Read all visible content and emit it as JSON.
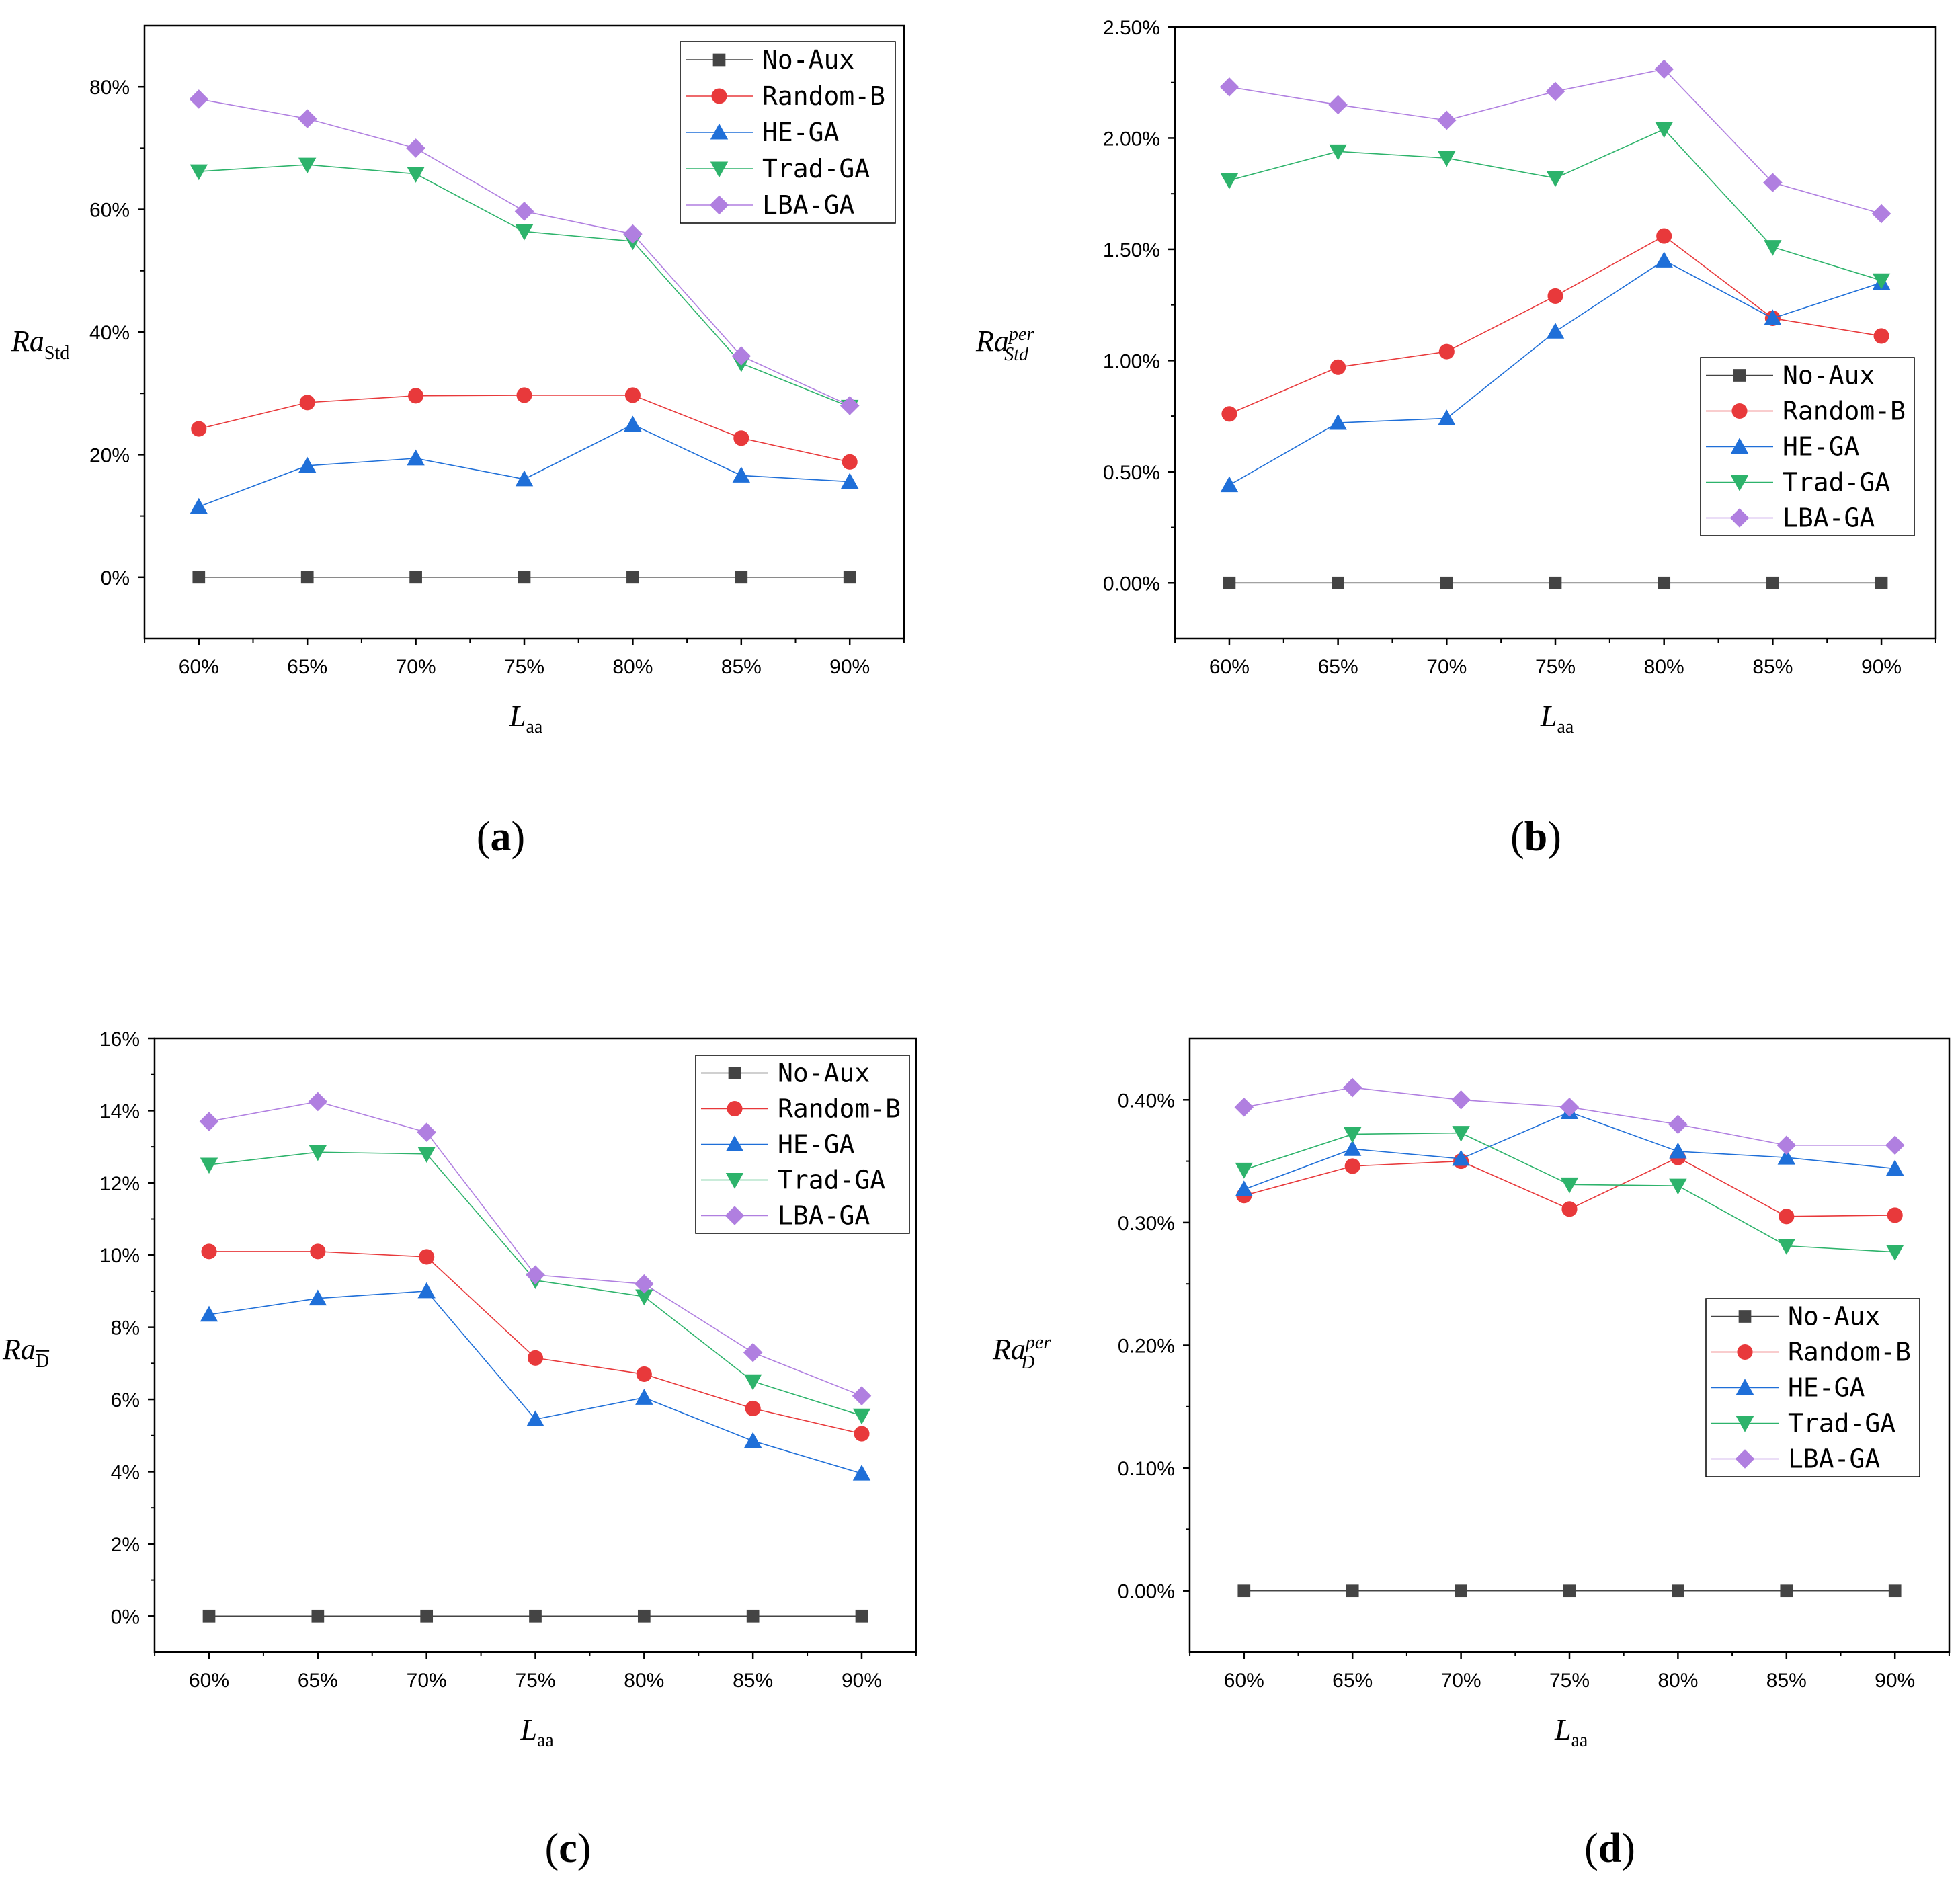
{
  "colors": {
    "No-Aux": "#444444",
    "Random-B": "#e8393b",
    "HE-GA": "#1f6fd8",
    "Trad-GA": "#2db36b",
    "LBA-GA": "#b07fe0"
  },
  "markers": {
    "No-Aux": "square",
    "Random-B": "circle",
    "HE-GA": "triangle-up",
    "Trad-GA": "triangle-down",
    "LBA-GA": "diamond"
  },
  "chart_data": [
    {
      "id": "a",
      "type": "line",
      "panel_label": "a",
      "ylabel_base": "Ra",
      "ylabel_sub": "Std",
      "ylabel_sup": "",
      "xlabel_base": "L",
      "xlabel_sub": "aa",
      "categories": [
        "60%",
        "65%",
        "70%",
        "75%",
        "80%",
        "85%",
        "90%"
      ],
      "ylim": [
        -10,
        90
      ],
      "yticks": [
        0,
        20,
        40,
        60,
        80
      ],
      "ytick_labels": [
        "0%",
        "20%",
        "40%",
        "60%",
        "80%"
      ],
      "legend_position": "top-right",
      "series": [
        {
          "name": "No-Aux",
          "values": [
            0,
            0,
            0,
            0,
            0,
            0,
            0
          ]
        },
        {
          "name": "Random-B",
          "values": [
            24.2,
            28.5,
            29.6,
            29.7,
            29.7,
            22.7,
            18.8
          ]
        },
        {
          "name": "HE-GA",
          "values": [
            11.5,
            18.2,
            19.4,
            16.0,
            24.9,
            16.6,
            15.6
          ]
        },
        {
          "name": "Trad-GA",
          "values": [
            66.2,
            67.3,
            65.8,
            56.4,
            54.8,
            34.9,
            27.8
          ]
        },
        {
          "name": "LBA-GA",
          "values": [
            78.0,
            74.8,
            70.0,
            59.7,
            56.0,
            36.1,
            28.0
          ]
        }
      ]
    },
    {
      "id": "b",
      "type": "line",
      "panel_label": "b",
      "ylabel_base": "Ra",
      "ylabel_sub": "Std",
      "ylabel_sup": "per",
      "xlabel_base": "L",
      "xlabel_sub": "aa",
      "categories": [
        "60%",
        "65%",
        "70%",
        "75%",
        "80%",
        "85%",
        "90%"
      ],
      "ylim": [
        -0.25,
        2.5
      ],
      "yticks": [
        0,
        0.5,
        1.0,
        1.5,
        2.0,
        2.5
      ],
      "ytick_labels": [
        "0.00%",
        "0.50%",
        "1.00%",
        "1.50%",
        "2.00%",
        "2.50%"
      ],
      "legend_position": "right",
      "series": [
        {
          "name": "No-Aux",
          "values": [
            0,
            0,
            0,
            0,
            0,
            0,
            0
          ]
        },
        {
          "name": "Random-B",
          "values": [
            0.76,
            0.97,
            1.04,
            1.29,
            1.56,
            1.19,
            1.11
          ]
        },
        {
          "name": "HE-GA",
          "values": [
            0.44,
            0.72,
            0.74,
            1.13,
            1.45,
            1.19,
            1.35
          ]
        },
        {
          "name": "Trad-GA",
          "values": [
            1.81,
            1.94,
            1.91,
            1.82,
            2.04,
            1.51,
            1.36
          ]
        },
        {
          "name": "LBA-GA",
          "values": [
            2.23,
            2.15,
            2.08,
            2.21,
            2.31,
            1.8,
            1.66
          ]
        }
      ]
    },
    {
      "id": "c",
      "type": "line",
      "panel_label": "c",
      "ylabel_base": "Ra",
      "ylabel_sub": "D",
      "ylabel_sup": "",
      "xlabel_base": "L",
      "xlabel_sub": "aa",
      "categories": [
        "60%",
        "65%",
        "70%",
        "75%",
        "80%",
        "85%",
        "90%"
      ],
      "ylim": [
        -1,
        16
      ],
      "yticks": [
        0,
        2,
        4,
        6,
        8,
        10,
        12,
        14,
        16
      ],
      "ytick_labels": [
        "0%",
        "2%",
        "4%",
        "6%",
        "8%",
        "10%",
        "12%",
        "14%",
        "16%"
      ],
      "legend_position": "top-right",
      "series": [
        {
          "name": "No-Aux",
          "values": [
            0,
            0,
            0,
            0,
            0,
            0,
            0
          ]
        },
        {
          "name": "Random-B",
          "values": [
            10.1,
            10.1,
            9.95,
            7.15,
            6.7,
            5.75,
            5.05
          ]
        },
        {
          "name": "HE-GA",
          "values": [
            8.35,
            8.8,
            9.0,
            5.45,
            6.05,
            4.85,
            3.95
          ]
        },
        {
          "name": "Trad-GA",
          "values": [
            12.5,
            12.85,
            12.8,
            9.3,
            8.85,
            6.5,
            5.55
          ]
        },
        {
          "name": "LBA-GA",
          "values": [
            13.7,
            14.25,
            13.4,
            9.45,
            9.2,
            7.3,
            6.1
          ]
        }
      ]
    },
    {
      "id": "d",
      "type": "line",
      "panel_label": "d",
      "ylabel_base": "Ra",
      "ylabel_sub": "D",
      "ylabel_sup": "per",
      "xlabel_base": "L",
      "xlabel_sub": "aa",
      "categories": [
        "60%",
        "65%",
        "70%",
        "75%",
        "80%",
        "85%",
        "90%"
      ],
      "ylim": [
        -0.05,
        0.45
      ],
      "yticks": [
        0,
        0.1,
        0.2,
        0.3,
        0.4
      ],
      "ytick_labels": [
        "0.00%",
        "0.10%",
        "0.20%",
        "0.30%",
        "0.40%"
      ],
      "legend_position": "right",
      "series": [
        {
          "name": "No-Aux",
          "values": [
            0,
            0,
            0,
            0,
            0,
            0,
            0
          ]
        },
        {
          "name": "Random-B",
          "values": [
            0.322,
            0.346,
            0.35,
            0.311,
            0.353,
            0.305,
            0.306
          ]
        },
        {
          "name": "HE-GA",
          "values": [
            0.327,
            0.36,
            0.352,
            0.39,
            0.358,
            0.353,
            0.344
          ]
        },
        {
          "name": "Trad-GA",
          "values": [
            0.343,
            0.372,
            0.373,
            0.331,
            0.33,
            0.281,
            0.276
          ]
        },
        {
          "name": "LBA-GA",
          "values": [
            0.394,
            0.41,
            0.4,
            0.394,
            0.38,
            0.363,
            0.363
          ]
        }
      ]
    }
  ]
}
